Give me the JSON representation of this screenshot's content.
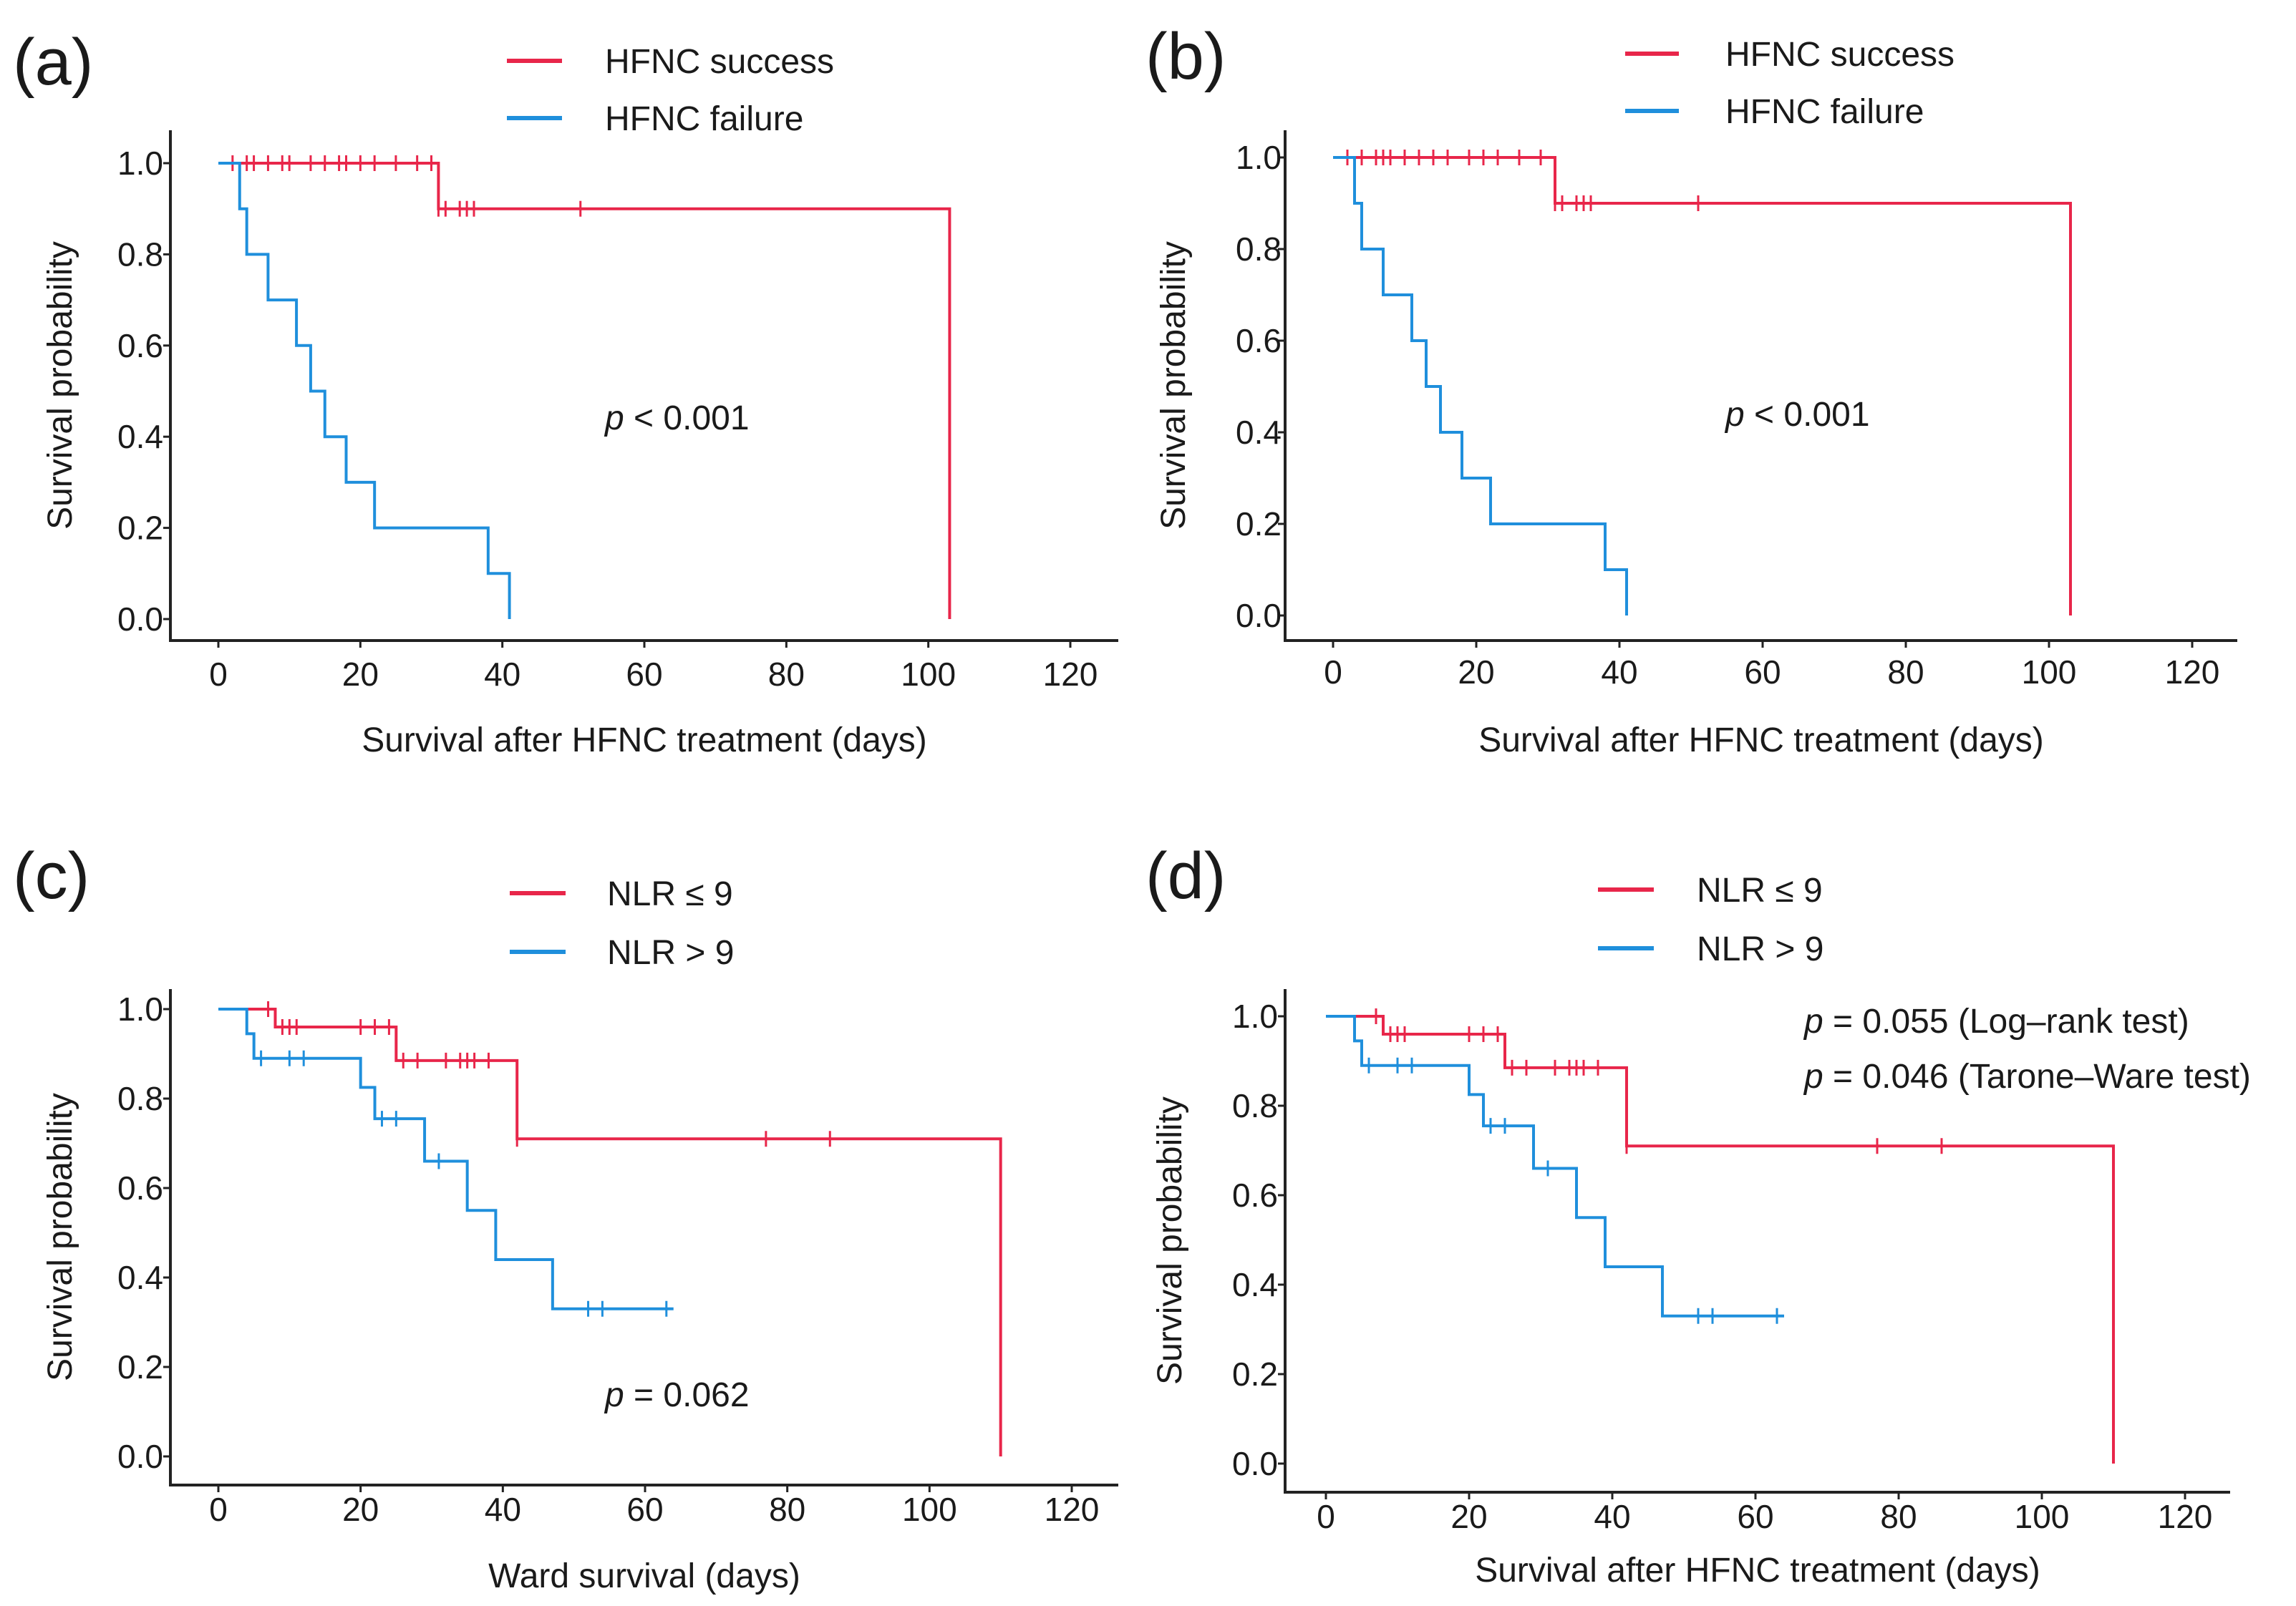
{
  "chart_data": [
    {
      "type": "line",
      "panel_label": "(a)",
      "xlabel": "Survival after HFNC treatment (days)",
      "ylabel": "Survival probability",
      "xlim": [
        0,
        120
      ],
      "ylim": [
        0,
        1.0
      ],
      "xticks": [
        "0",
        "20",
        "40",
        "60",
        "80",
        "100",
        "120"
      ],
      "yticks": [
        "0.0",
        "0.2",
        "0.4",
        "0.6",
        "0.8",
        "1.0"
      ],
      "legend_position": "top",
      "annotations": [
        {
          "italic": "p",
          "rest": " < 0.001"
        }
      ],
      "series": [
        {
          "name": "HFNC success",
          "color": "#e8264a",
          "steps": [
            [
              0,
              1.0
            ],
            [
              31,
              0.9
            ],
            [
              103,
              0.0
            ]
          ],
          "end_x": 103,
          "censored": [
            [
              2,
              1.0
            ],
            [
              4,
              1.0
            ],
            [
              5,
              1.0
            ],
            [
              7,
              1.0
            ],
            [
              9,
              1.0
            ],
            [
              10,
              1.0
            ],
            [
              13,
              1.0
            ],
            [
              15,
              1.0
            ],
            [
              17,
              1.0
            ],
            [
              18,
              1.0
            ],
            [
              20,
              1.0
            ],
            [
              22,
              1.0
            ],
            [
              25,
              1.0
            ],
            [
              28,
              1.0
            ],
            [
              30,
              1.0
            ],
            [
              31,
              0.9
            ],
            [
              32,
              0.9
            ],
            [
              34,
              0.9
            ],
            [
              35,
              0.9
            ],
            [
              36,
              0.9
            ],
            [
              51,
              0.9
            ]
          ]
        },
        {
          "name": "HFNC failure",
          "color": "#1f8fdc",
          "steps": [
            [
              0,
              1.0
            ],
            [
              3,
              0.9
            ],
            [
              4,
              0.8
            ],
            [
              7,
              0.7
            ],
            [
              11,
              0.6
            ],
            [
              13,
              0.5
            ],
            [
              15,
              0.4
            ],
            [
              18,
              0.3
            ],
            [
              22,
              0.2
            ],
            [
              38,
              0.1
            ],
            [
              41,
              0.0
            ]
          ],
          "start_x": 3,
          "end_x": 41,
          "censored": []
        }
      ]
    },
    {
      "type": "line",
      "panel_label": "(b)",
      "xlabel": "Survival after HFNC treatment (days)",
      "ylabel": "Survival probability",
      "xlim": [
        0,
        120
      ],
      "ylim": [
        0,
        1.0
      ],
      "xticks": [
        "0",
        "20",
        "40",
        "60",
        "80",
        "100",
        "120"
      ],
      "yticks": [
        "0.0",
        "0.2",
        "0.4",
        "0.6",
        "0.8",
        "1.0"
      ],
      "legend_position": "top",
      "annotations": [
        {
          "italic": "p",
          "rest": " < 0.001"
        }
      ],
      "series": [
        {
          "name": "HFNC success",
          "color": "#e8264a",
          "steps": [
            [
              0,
              1.0
            ],
            [
              31,
              0.9
            ],
            [
              103,
              0.0
            ]
          ],
          "end_x": 103,
          "censored": [
            [
              2,
              1.0
            ],
            [
              4,
              1.0
            ],
            [
              6,
              1.0
            ],
            [
              7,
              1.0
            ],
            [
              8,
              1.0
            ],
            [
              10,
              1.0
            ],
            [
              12,
              1.0
            ],
            [
              14,
              1.0
            ],
            [
              16,
              1.0
            ],
            [
              19,
              1.0
            ],
            [
              21,
              1.0
            ],
            [
              23,
              1.0
            ],
            [
              26,
              1.0
            ],
            [
              29,
              1.0
            ],
            [
              31,
              0.9
            ],
            [
              32,
              0.9
            ],
            [
              34,
              0.9
            ],
            [
              35,
              0.9
            ],
            [
              36,
              0.9
            ],
            [
              51,
              0.9
            ]
          ]
        },
        {
          "name": "HFNC failure",
          "color": "#1f8fdc",
          "steps": [
            [
              0,
              1.0
            ],
            [
              3,
              0.9
            ],
            [
              4,
              0.8
            ],
            [
              7,
              0.7
            ],
            [
              11,
              0.6
            ],
            [
              13,
              0.5
            ],
            [
              15,
              0.4
            ],
            [
              18,
              0.3
            ],
            [
              22,
              0.2
            ],
            [
              38,
              0.1
            ],
            [
              41,
              0.0
            ]
          ],
          "start_x": 3,
          "end_x": 41,
          "censored": []
        }
      ]
    },
    {
      "type": "line",
      "panel_label": "(c)",
      "xlabel": "Ward survival (days)",
      "ylabel": "Survival probability",
      "xlim": [
        0,
        120
      ],
      "ylim": [
        0,
        1.0
      ],
      "xticks": [
        "0",
        "20",
        "40",
        "60",
        "80",
        "100",
        "120"
      ],
      "yticks": [
        "0.0",
        "0.2",
        "0.4",
        "0.6",
        "0.8",
        "1.0"
      ],
      "legend_position": "top",
      "annotations": [
        {
          "italic": "p",
          "rest": " = 0.062"
        }
      ],
      "series": [
        {
          "name": "NLR ≤ 9",
          "color": "#e8264a",
          "steps": [
            [
              0,
              1.0
            ],
            [
              8,
              0.96
            ],
            [
              25,
              0.885
            ],
            [
              42,
              0.71
            ],
            [
              110,
              0.0
            ]
          ],
          "end_x": 110,
          "censored": [
            [
              7,
              1.0
            ],
            [
              9,
              0.96
            ],
            [
              10,
              0.96
            ],
            [
              11,
              0.96
            ],
            [
              20,
              0.96
            ],
            [
              22,
              0.96
            ],
            [
              24,
              0.96
            ],
            [
              26,
              0.885
            ],
            [
              28,
              0.885
            ],
            [
              32,
              0.885
            ],
            [
              34,
              0.885
            ],
            [
              35,
              0.885
            ],
            [
              36,
              0.885
            ],
            [
              38,
              0.885
            ],
            [
              42,
              0.71
            ],
            [
              77,
              0.71
            ],
            [
              86,
              0.71
            ]
          ]
        },
        {
          "name": "NLR > 9",
          "color": "#1f8fdc",
          "steps": [
            [
              0,
              1.0
            ],
            [
              4,
              0.945
            ],
            [
              5,
              0.89
            ],
            [
              20,
              0.825
            ],
            [
              22,
              0.755
            ],
            [
              29,
              0.66
            ],
            [
              35,
              0.55
            ],
            [
              39,
              0.44
            ],
            [
              47,
              0.33
            ],
            [
              64,
              0.33
            ]
          ],
          "end_x": 64,
          "censored": [
            [
              6,
              0.89
            ],
            [
              10,
              0.89
            ],
            [
              12,
              0.89
            ],
            [
              23,
              0.755
            ],
            [
              25,
              0.755
            ],
            [
              31,
              0.66
            ],
            [
              52,
              0.33
            ],
            [
              54,
              0.33
            ],
            [
              63,
              0.33
            ]
          ]
        }
      ]
    },
    {
      "type": "line",
      "panel_label": "(d)",
      "xlabel": "Survival after HFNC treatment (days)",
      "ylabel": "Survival probability",
      "xlim": [
        0,
        120
      ],
      "ylim": [
        0,
        1.0
      ],
      "xticks": [
        "0",
        "20",
        "40",
        "60",
        "80",
        "100",
        "120"
      ],
      "yticks": [
        "0.0",
        "0.2",
        "0.4",
        "0.6",
        "0.8",
        "1.0"
      ],
      "legend_position": "top",
      "annotations": [
        {
          "italic": "p",
          "rest": " = 0.055 (Log–rank test)"
        },
        {
          "italic": "p",
          "rest": " = 0.046 (Tarone–Ware test)"
        }
      ],
      "series": [
        {
          "name": "NLR ≤ 9",
          "color": "#e8264a",
          "steps": [
            [
              0,
              1.0
            ],
            [
              8,
              0.96
            ],
            [
              25,
              0.885
            ],
            [
              42,
              0.71
            ],
            [
              110,
              0.0
            ]
          ],
          "end_x": 110,
          "censored": [
            [
              7,
              1.0
            ],
            [
              9,
              0.96
            ],
            [
              10,
              0.96
            ],
            [
              11,
              0.96
            ],
            [
              20,
              0.96
            ],
            [
              22,
              0.96
            ],
            [
              24,
              0.96
            ],
            [
              26,
              0.885
            ],
            [
              28,
              0.885
            ],
            [
              32,
              0.885
            ],
            [
              34,
              0.885
            ],
            [
              35,
              0.885
            ],
            [
              36,
              0.885
            ],
            [
              38,
              0.885
            ],
            [
              42,
              0.71
            ],
            [
              77,
              0.71
            ],
            [
              86,
              0.71
            ]
          ]
        },
        {
          "name": "NLR > 9",
          "color": "#1f8fdc",
          "steps": [
            [
              0,
              1.0
            ],
            [
              4,
              0.945
            ],
            [
              5,
              0.89
            ],
            [
              20,
              0.825
            ],
            [
              22,
              0.755
            ],
            [
              29,
              0.66
            ],
            [
              35,
              0.55
            ],
            [
              39,
              0.44
            ],
            [
              47,
              0.33
            ],
            [
              64,
              0.33
            ]
          ],
          "end_x": 64,
          "censored": [
            [
              6,
              0.89
            ],
            [
              10,
              0.89
            ],
            [
              12,
              0.89
            ],
            [
              23,
              0.755
            ],
            [
              25,
              0.755
            ],
            [
              31,
              0.66
            ],
            [
              52,
              0.33
            ],
            [
              54,
              0.33
            ],
            [
              63,
              0.33
            ]
          ]
        }
      ]
    }
  ]
}
